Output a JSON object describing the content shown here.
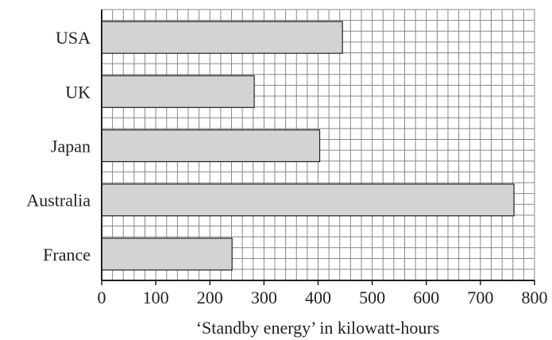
{
  "chart_data": {
    "type": "bar",
    "orientation": "horizontal",
    "categories": [
      "USA",
      "UK",
      "Japan",
      "Australia",
      "France"
    ],
    "values": [
      445,
      282,
      403,
      762,
      241
    ],
    "xlabel": "‘Standby energy’ in kilowatt-hours",
    "xlim": [
      0,
      800
    ],
    "xticks": [
      0,
      100,
      200,
      300,
      400,
      500,
      600,
      700,
      800
    ],
    "grid": true,
    "gridlines_per_major": 5,
    "bar_color": "#d3d3d3",
    "grid_color": "#888888",
    "axis_color": "#231f20"
  }
}
